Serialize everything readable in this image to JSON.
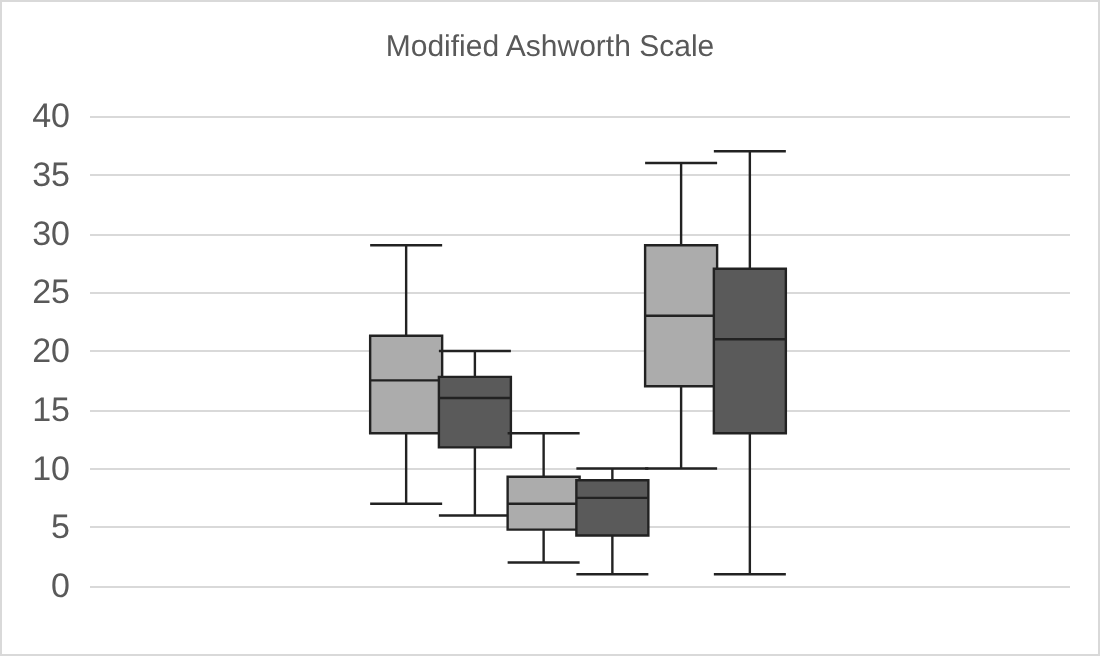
{
  "chart_data": {
    "type": "box",
    "title": "Modified Ashworth Scale",
    "categories": [
      null
    ],
    "series": [
      {
        "color": "#acacac",
        "boxes": [
          {
            "low": 7,
            "q1": 13,
            "median": 17.5,
            "q3": 21.3,
            "high": 29
          }
        ]
      },
      {
        "color": "#5a5a5a",
        "boxes": [
          {
            "low": 6,
            "q1": 11.8,
            "median": 16,
            "q3": 17.8,
            "high": 20
          }
        ]
      },
      {
        "color": "#acacac",
        "boxes": [
          {
            "low": 2,
            "q1": 4.8,
            "median": 7,
            "q3": 9.3,
            "high": 13
          }
        ]
      },
      {
        "color": "#5a5a5a",
        "boxes": [
          {
            "low": 1,
            "q1": 4.3,
            "median": 7.5,
            "q3": 9,
            "high": 10
          }
        ]
      },
      {
        "color": "#acacac",
        "boxes": [
          {
            "low": 10,
            "q1": 17,
            "median": 23,
            "q3": 29,
            "high": 36
          }
        ]
      },
      {
        "color": "#5a5a5a",
        "boxes": [
          {
            "low": 1,
            "q1": 13,
            "median": 21,
            "q3": 27,
            "high": 37
          }
        ]
      }
    ],
    "ylim": [
      0,
      40
    ],
    "yticks": [
      0,
      5,
      10,
      15,
      20,
      25,
      30,
      35,
      40
    ],
    "grid": "y"
  }
}
